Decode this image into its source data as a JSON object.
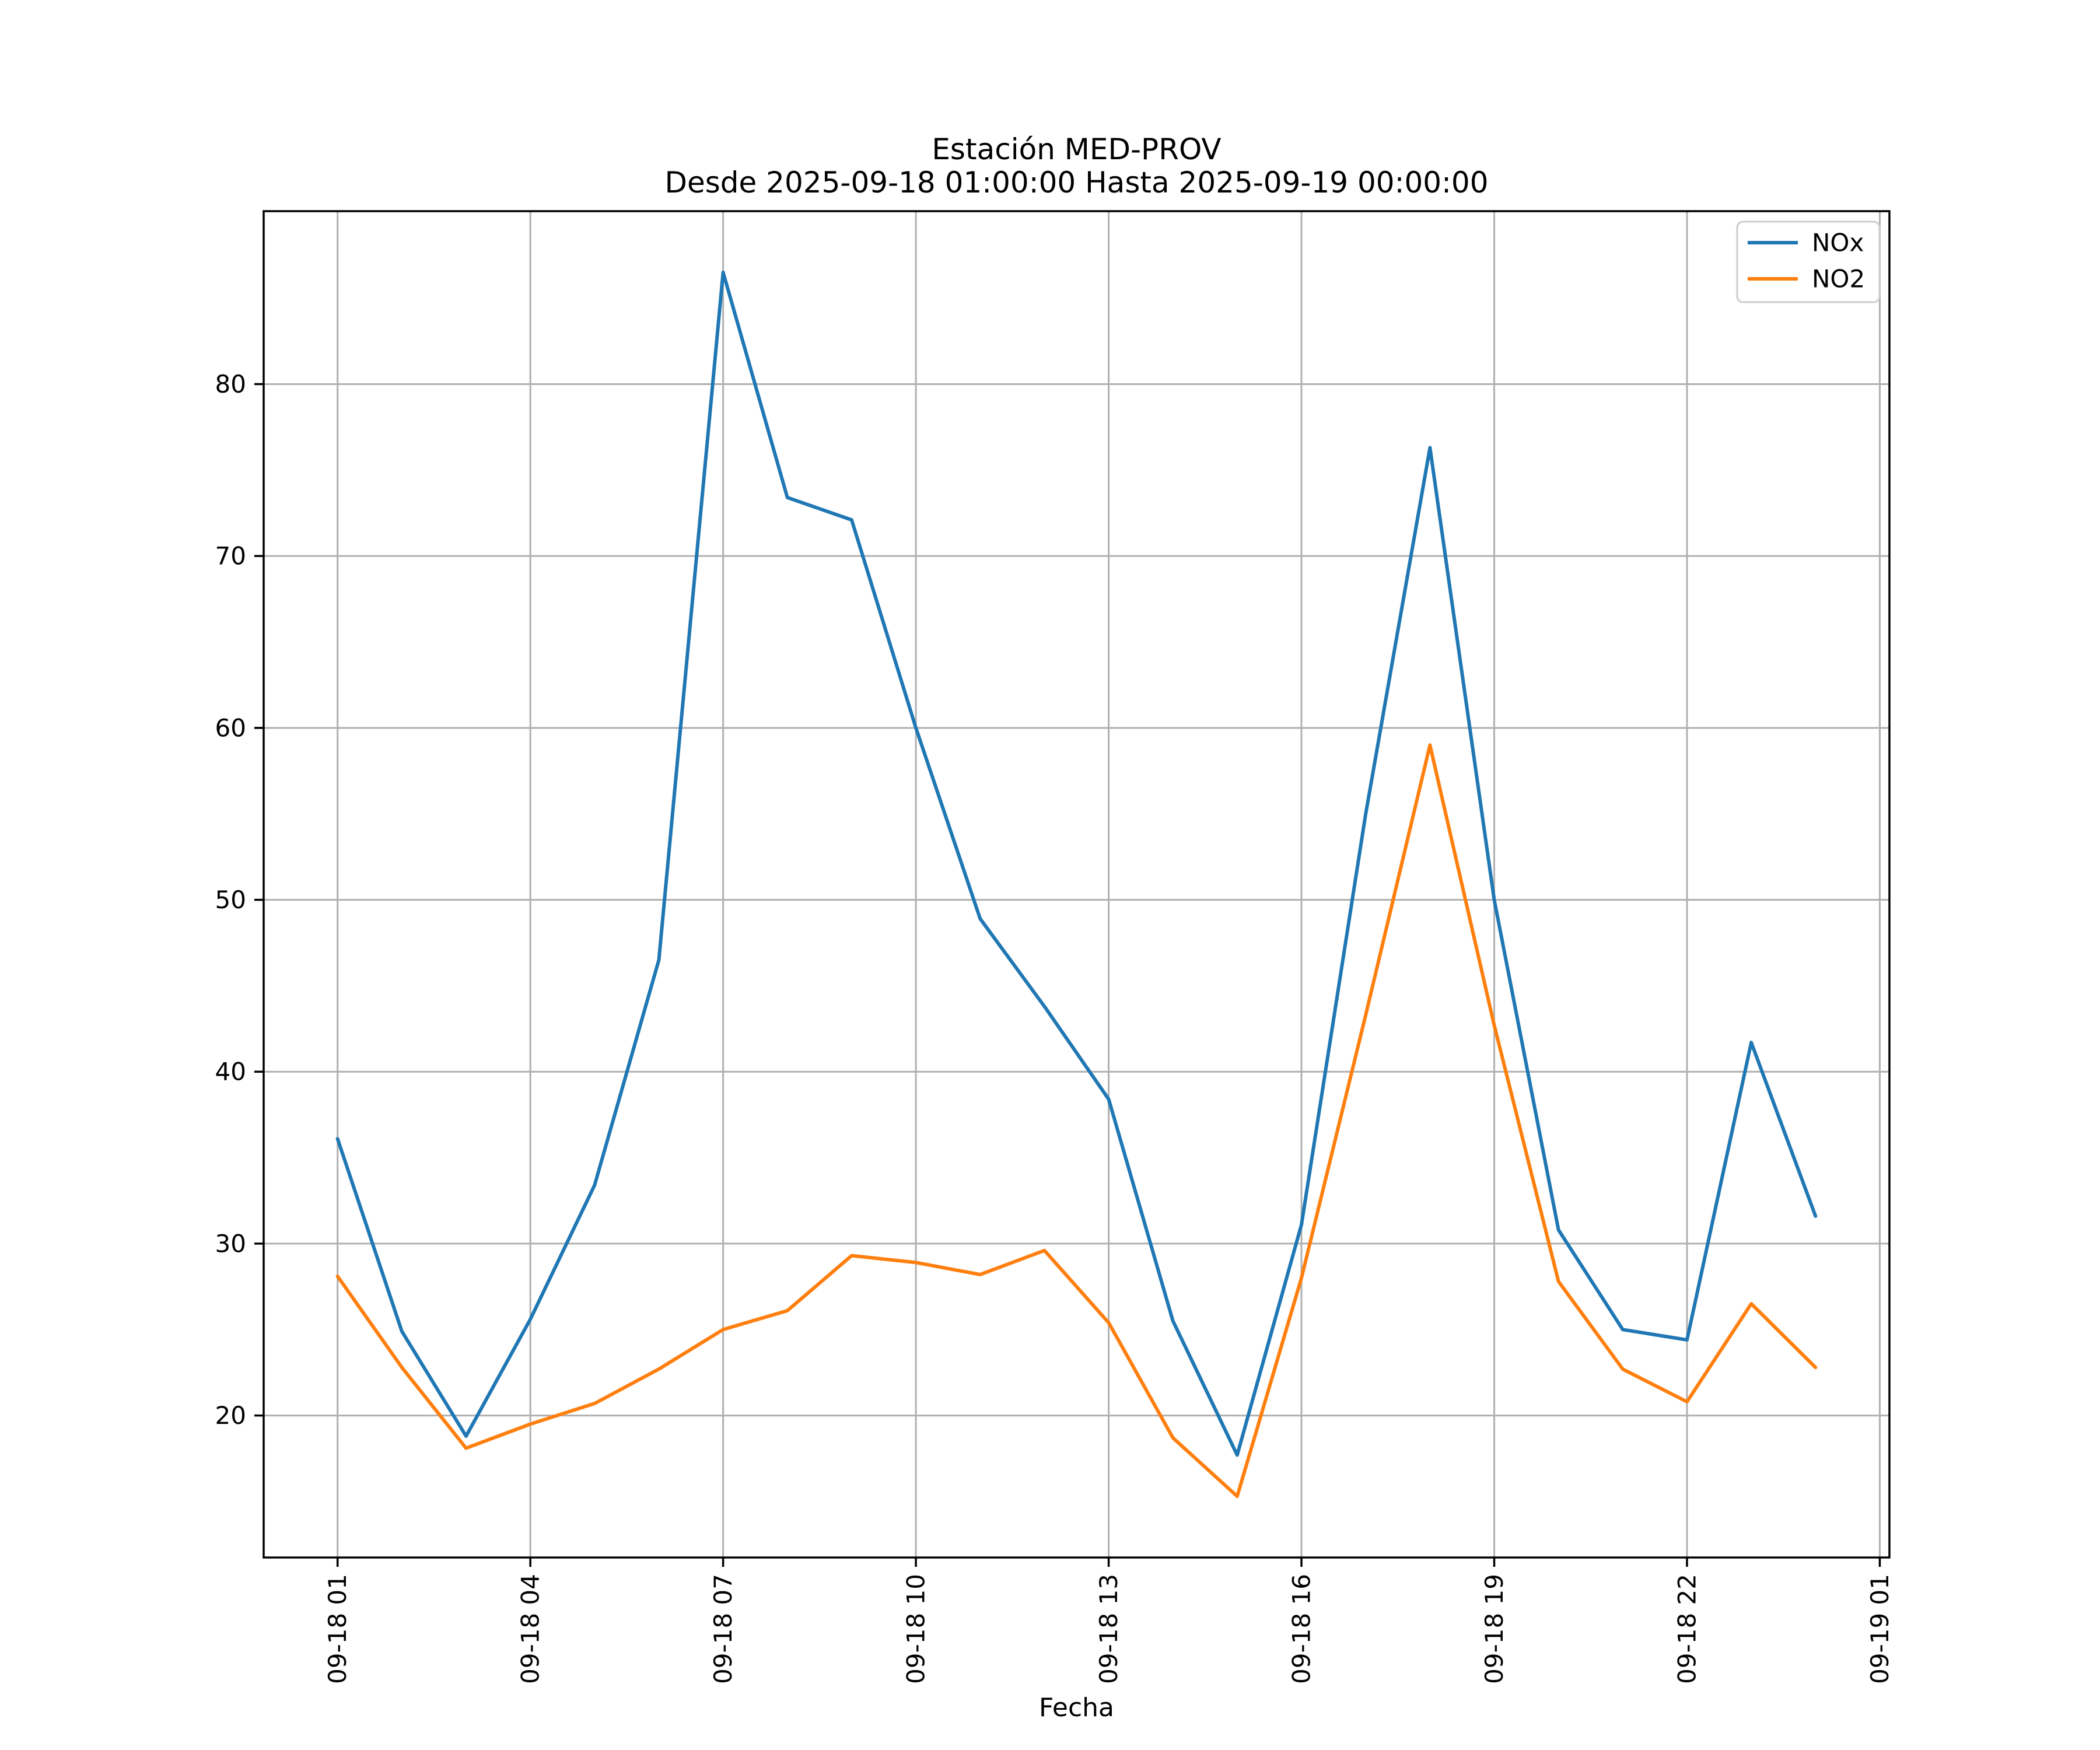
{
  "chart_data": {
    "type": "line",
    "title": "Estación MED-PROV",
    "subtitle": "Desde 2025-09-18 01:00:00 Hasta 2025-09-19 00:00:00",
    "xlabel": "Fecha",
    "ylabel": "",
    "grid": true,
    "background_color": "#ffffff",
    "grid_color": "#b0b0b0",
    "spine_color": "#000000",
    "x_tick_labels": [
      "09-18 01",
      "09-18 04",
      "09-18 07",
      "09-18 10",
      "09-18 13",
      "09-18 16",
      "09-18 19",
      "09-18 22",
      "09-19 01"
    ],
    "x_tick_positions": [
      0,
      3,
      6,
      9,
      12,
      15,
      18,
      21,
      24
    ],
    "x_tick_rotation_deg": 90,
    "y_ticks": [
      20,
      30,
      40,
      50,
      60,
      70,
      80
    ],
    "xlim": [
      -1.15,
      24.15
    ],
    "ylim": [
      11.74,
      90.06
    ],
    "x_hours": [
      "01",
      "02",
      "03",
      "04",
      "05",
      "06",
      "07",
      "08",
      "09",
      "10",
      "11",
      "12",
      "13",
      "14",
      "15",
      "16",
      "17",
      "18",
      "19",
      "20",
      "21",
      "22",
      "23",
      "00"
    ],
    "series": [
      {
        "name": "NOx",
        "color": "#1f77b4",
        "values": [
          36.1,
          24.9,
          18.8,
          25.6,
          33.4,
          46.5,
          86.5,
          73.4,
          72.1,
          60.0,
          48.9,
          43.8,
          38.4,
          25.5,
          17.7,
          31.1,
          55.0,
          76.3,
          50.0,
          30.8,
          25.0,
          24.4,
          41.7,
          31.6
        ]
      },
      {
        "name": "NO2",
        "color": "#ff7f0e",
        "values": [
          28.1,
          22.8,
          18.1,
          19.5,
          20.7,
          22.7,
          25.0,
          26.1,
          29.3,
          28.9,
          28.2,
          29.6,
          25.4,
          18.7,
          15.3,
          28.0,
          43.3,
          59.0,
          42.7,
          27.8,
          22.7,
          20.8,
          26.5,
          22.8
        ]
      }
    ],
    "legend": {
      "position": "upper right",
      "entries": [
        "NOx",
        "NO2"
      ]
    }
  }
}
